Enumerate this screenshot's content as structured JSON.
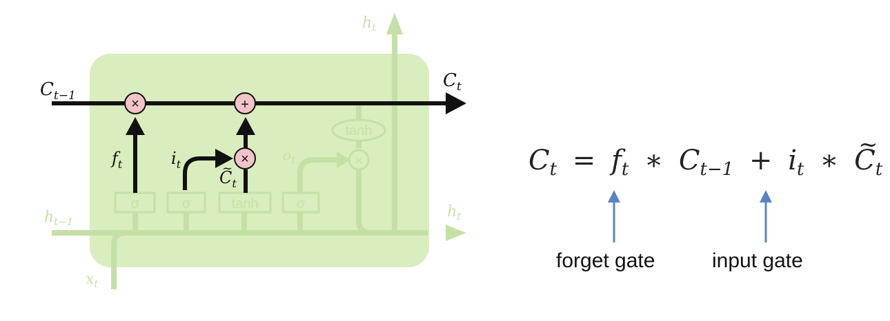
{
  "diagram": {
    "labels": {
      "c_prev": "C",
      "c_prev_sub": "t−1",
      "c_next": "C",
      "c_next_sub": "t",
      "h_top": "h",
      "h_top_sub": "t",
      "h_prev": "h",
      "h_prev_sub": "t−1",
      "h_right": "h",
      "h_right_sub": "t",
      "x_in": "x",
      "x_in_sub": "t",
      "f": "f",
      "f_sub": "t",
      "i": "i",
      "i_sub": "t",
      "c_tilde": "C",
      "c_tilde_sub": "t",
      "o": "o",
      "o_sub": "t"
    },
    "nodes": {
      "mult1": "×",
      "add": "+",
      "mult2": "×",
      "mult3": "×",
      "tanh_oval": "tanh"
    },
    "gates": {
      "sigma1": "σ",
      "sigma2": "σ",
      "tanh": "tanh",
      "sigma3": "σ"
    }
  },
  "equation": {
    "lhs": "C",
    "lhs_sub": "t",
    "eq": "=",
    "f": "f",
    "f_sub": "t",
    "op1": "∗",
    "c_prev": "C",
    "c_prev_sub": "t−1",
    "plus": "+",
    "i": "i",
    "i_sub": "t",
    "op2": "∗",
    "c_tilde": "C",
    "c_tilde_sub": "t",
    "tilde": "~"
  },
  "annotations": {
    "forget": "forget gate",
    "input": "input gate"
  },
  "colors": {
    "cell_fill": "#d9edbe",
    "faded": "#c5e0a7",
    "pink": "#f2c4c9",
    "arrow_blue": "#5b84c1",
    "black": "#111111"
  }
}
